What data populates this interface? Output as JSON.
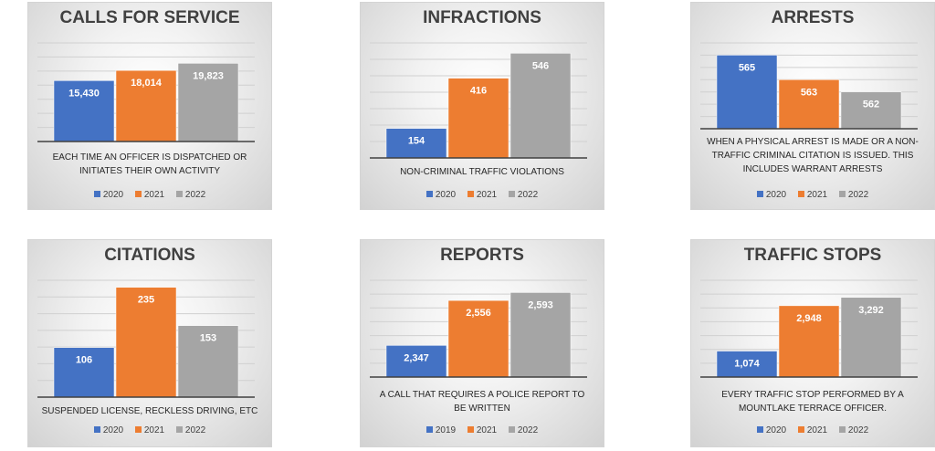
{
  "colors": {
    "series1": "#4472C4",
    "series2": "#ED7D31",
    "series3": "#A5A5A5"
  },
  "chart_data": [
    {
      "type": "bar",
      "title": "CALLS FOR SERVICE",
      "description": "EACH TIME AN OFFICER IS DISPATCHED OR INITIATES THEIR OWN ACTIVITY",
      "series": [
        {
          "name": "2020",
          "values": [
            15430
          ],
          "label": "15,430"
        },
        {
          "name": "2021",
          "values": [
            18014
          ],
          "label": "18,014"
        },
        {
          "name": "2022",
          "values": [
            19823
          ],
          "label": "19,823"
        }
      ],
      "ylim": [
        0,
        25000
      ],
      "legend": "bottom",
      "grid": true
    },
    {
      "type": "bar",
      "title": "INFRACTIONS",
      "description": "NON-CRIMINAL TRAFFIC VIOLATIONS",
      "series": [
        {
          "name": "2020",
          "values": [
            154
          ],
          "label": "154"
        },
        {
          "name": "2021",
          "values": [
            416
          ],
          "label": "416"
        },
        {
          "name": "2022",
          "values": [
            546
          ],
          "label": "546"
        }
      ],
      "ylim": [
        0,
        600
      ],
      "legend": "bottom",
      "grid": true
    },
    {
      "type": "bar",
      "title": "ARRESTS",
      "description": "WHEN A PHYSICAL ARREST IS MADE OR A NON-TRAFFIC CRIMINAL CITATION IS ISSUED. THIS INCLUDES WARRANT ARRESTS",
      "series": [
        {
          "name": "2020",
          "values": [
            565
          ],
          "label": "565"
        },
        {
          "name": "2021",
          "values": [
            563
          ],
          "label": "563"
        },
        {
          "name": "2022",
          "values": [
            562
          ],
          "label": "562"
        }
      ],
      "ylim": [
        559,
        566
      ],
      "legend": "bottom",
      "grid": true
    },
    {
      "type": "bar",
      "title": "CITATIONS",
      "description": "SUSPENDED LICENSE, RECKLESS DRIVING, ETC",
      "series": [
        {
          "name": "2020",
          "values": [
            106
          ],
          "label": "106"
        },
        {
          "name": "2021",
          "values": [
            235
          ],
          "label": "235"
        },
        {
          "name": "2022",
          "values": [
            153
          ],
          "label": "153"
        }
      ],
      "ylim": [
        0,
        250
      ],
      "legend": "bottom",
      "grid": true
    },
    {
      "type": "bar",
      "title": "REPORTS",
      "description": "A CALL THAT REQUIRES A POLICE REPORT TO BE WRITTEN",
      "series": [
        {
          "name": "2019",
          "values": [
            2347
          ],
          "label": "2,347"
        },
        {
          "name": "2021",
          "values": [
            2556
          ],
          "label": "2,556"
        },
        {
          "name": "2022",
          "values": [
            2593
          ],
          "label": "2,593"
        }
      ],
      "ylim": [
        2200,
        2650
      ],
      "legend": "bottom",
      "grid": true
    },
    {
      "type": "bar",
      "title": "TRAFFIC STOPS",
      "description": "EVERY TRAFFIC STOP PERFORMED BY A MOUNTLAKE TERRACE OFFICER.",
      "series": [
        {
          "name": "2020",
          "values": [
            1074
          ],
          "label": "1,074"
        },
        {
          "name": "2021",
          "values": [
            2948
          ],
          "label": "2,948"
        },
        {
          "name": "2022",
          "values": [
            3292
          ],
          "label": "3,292"
        }
      ],
      "ylim": [
        0,
        4000
      ],
      "legend": "bottom",
      "grid": true
    }
  ]
}
